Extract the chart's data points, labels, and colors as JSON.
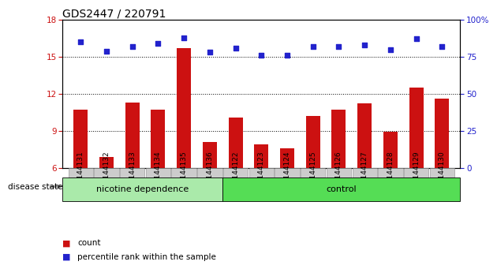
{
  "title": "GDS2447 / 220791",
  "categories": [
    "GSM144131",
    "GSM144132",
    "GSM144133",
    "GSM144134",
    "GSM144135",
    "GSM144136",
    "GSM144122",
    "GSM144123",
    "GSM144124",
    "GSM144125",
    "GSM144126",
    "GSM144127",
    "GSM144128",
    "GSM144129",
    "GSM144130"
  ],
  "count_values": [
    10.7,
    6.9,
    11.3,
    10.7,
    15.7,
    8.1,
    10.1,
    7.9,
    7.6,
    10.2,
    10.7,
    11.2,
    8.9,
    12.5,
    11.6
  ],
  "percentile_values": [
    85,
    79,
    82,
    84,
    88,
    78,
    81,
    76,
    76,
    82,
    82,
    83,
    80,
    87,
    82
  ],
  "ylim_left": [
    6,
    18
  ],
  "ylim_right": [
    0,
    100
  ],
  "yticks_left": [
    6,
    9,
    12,
    15,
    18
  ],
  "yticks_right": [
    0,
    25,
    50,
    75,
    100
  ],
  "bar_color": "#cc1111",
  "dot_color": "#2222cc",
  "group1_label": "nicotine dependence",
  "group2_label": "control",
  "group1_color": "#aaeaaa",
  "group2_color": "#55dd55",
  "group1_count": 6,
  "group2_count": 9,
  "disease_state_label": "disease state",
  "legend_count_label": "count",
  "legend_percentile_label": "percentile rank within the sample",
  "title_fontsize": 10,
  "tick_label_fontsize": 6.5,
  "bar_width": 0.55,
  "xticklabel_bg": "#cccccc",
  "grid_yticks": [
    9,
    12,
    15
  ]
}
